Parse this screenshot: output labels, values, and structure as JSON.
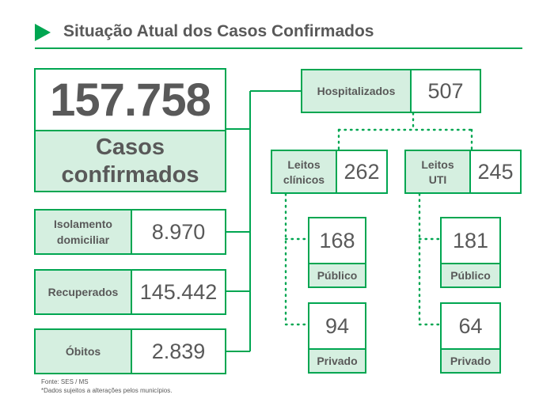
{
  "header": {
    "title": "Situação Atual dos Casos Confirmados",
    "accent_color": "#00a651",
    "label_bg_color": "#d5efe0",
    "arrow_icon": "play-triangle"
  },
  "total": {
    "value": "157.758",
    "label_line1": "Casos",
    "label_line2": "confirmados"
  },
  "isolamento": {
    "label_line1": "Isolamento",
    "label_line2": "domiciliar",
    "value": "8.970"
  },
  "recuperados": {
    "label": "Recuperados",
    "value": "145.442"
  },
  "obitos": {
    "label": "Óbitos",
    "value": "2.839"
  },
  "hospitalizados": {
    "label": "Hospitalizados",
    "value": "507"
  },
  "leitos_clinicos": {
    "label_line1": "Leitos",
    "label_line2": "clínicos",
    "value": "262",
    "publico": {
      "value": "168",
      "label": "Público"
    },
    "privado": {
      "value": "94",
      "label": "Privado"
    }
  },
  "leitos_uti": {
    "label_line1": "Leitos",
    "label_line2": "UTI",
    "value": "245",
    "publico": {
      "value": "181",
      "label": "Público"
    },
    "privado": {
      "value": "64",
      "label": "Privado"
    }
  },
  "footer": {
    "source": "Fonte: SES / MS",
    "note": "*Dados sujeitos a alterações pelos municípios."
  }
}
